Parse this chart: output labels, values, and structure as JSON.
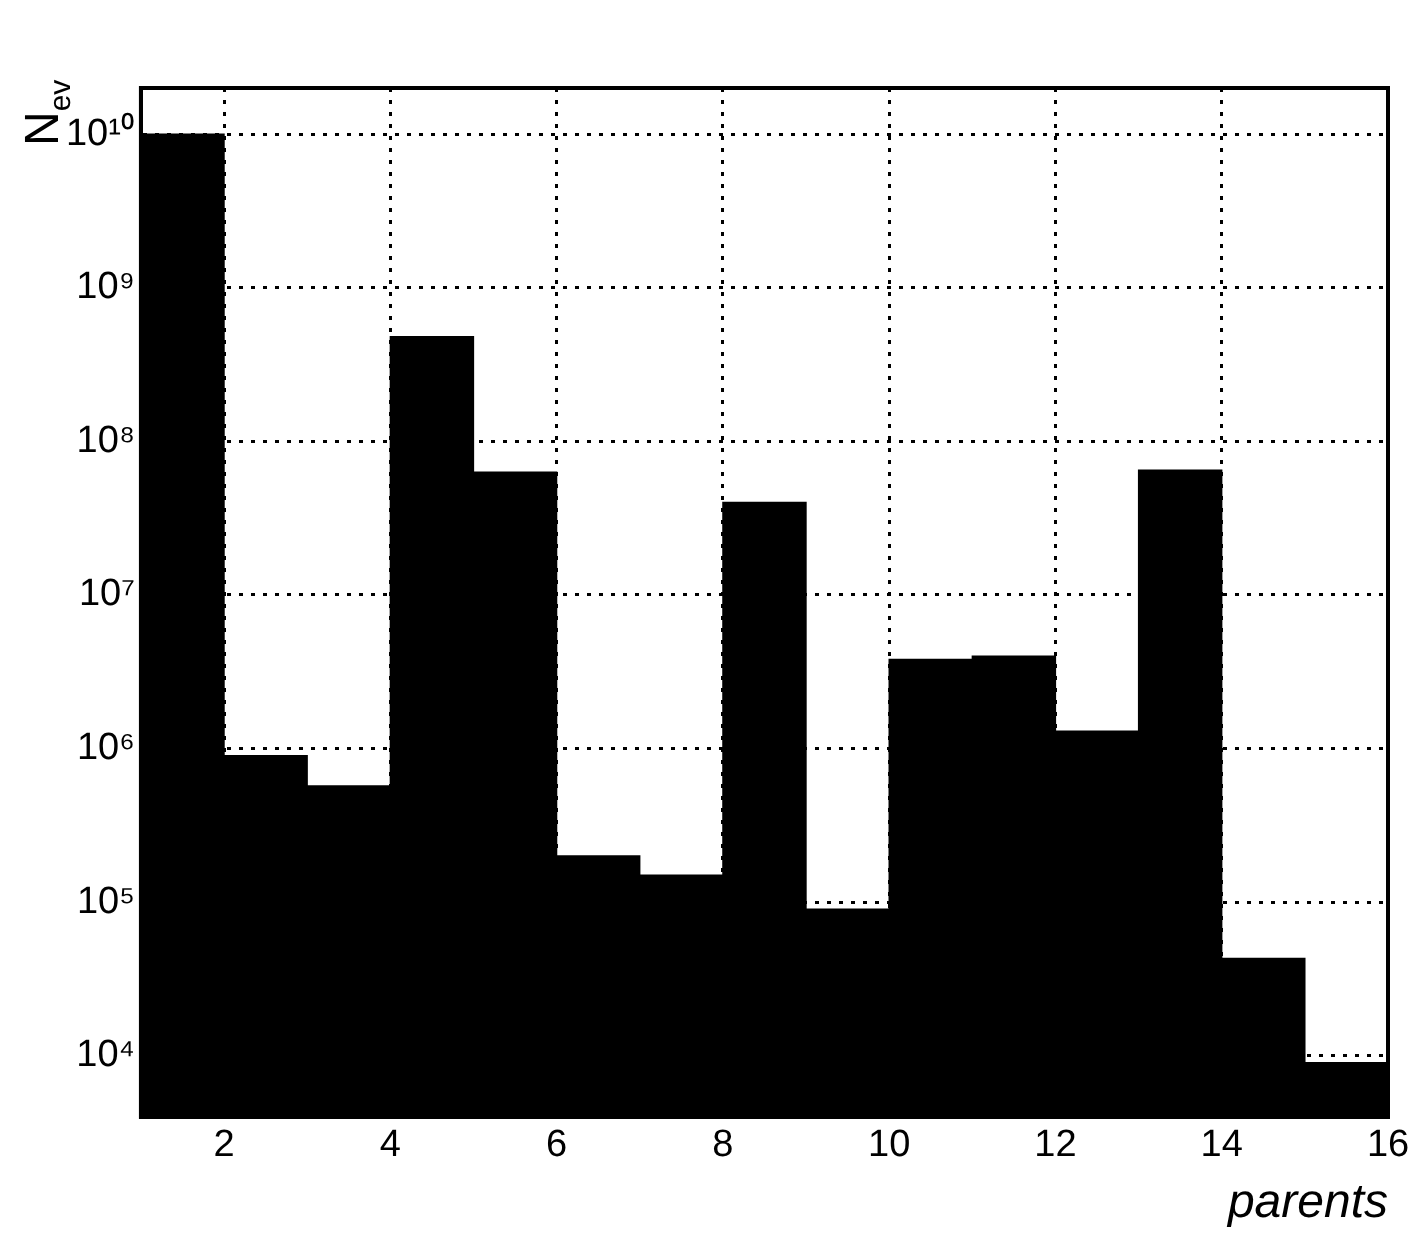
{
  "chart_data": {
    "type": "histogram",
    "xlabel": "parents",
    "ylabel": "N$_{ev}$",
    "bins": [
      1,
      2,
      3,
      4,
      5,
      6,
      7,
      8,
      9,
      10,
      11,
      12,
      13,
      14,
      15,
      16
    ],
    "values": [
      10000000000,
      900000,
      570000,
      480000000,
      63000000,
      200000,
      150000,
      40000000,
      90000,
      3800000,
      4000000,
      1300000,
      65000000,
      43000,
      9000
    ],
    "color": "#000000",
    "xlim": [
      1,
      16
    ],
    "xticks": [
      2,
      4,
      6,
      8,
      10,
      12,
      14,
      16
    ],
    "ylim": [
      4000,
      20000000000
    ],
    "yticks": [
      {
        "value": 10000,
        "label": "10⁴"
      },
      {
        "value": 100000,
        "label": "10⁵"
      },
      {
        "value": 1000000,
        "label": "10⁶"
      },
      {
        "value": 10000000,
        "label": "10⁷"
      },
      {
        "value": 100000000,
        "label": "10⁸"
      },
      {
        "value": 1000000000,
        "label": "10⁹"
      },
      {
        "value": 10000000000,
        "label": "10¹⁰"
      }
    ],
    "log": "y",
    "grid": true,
    "legend": false
  }
}
